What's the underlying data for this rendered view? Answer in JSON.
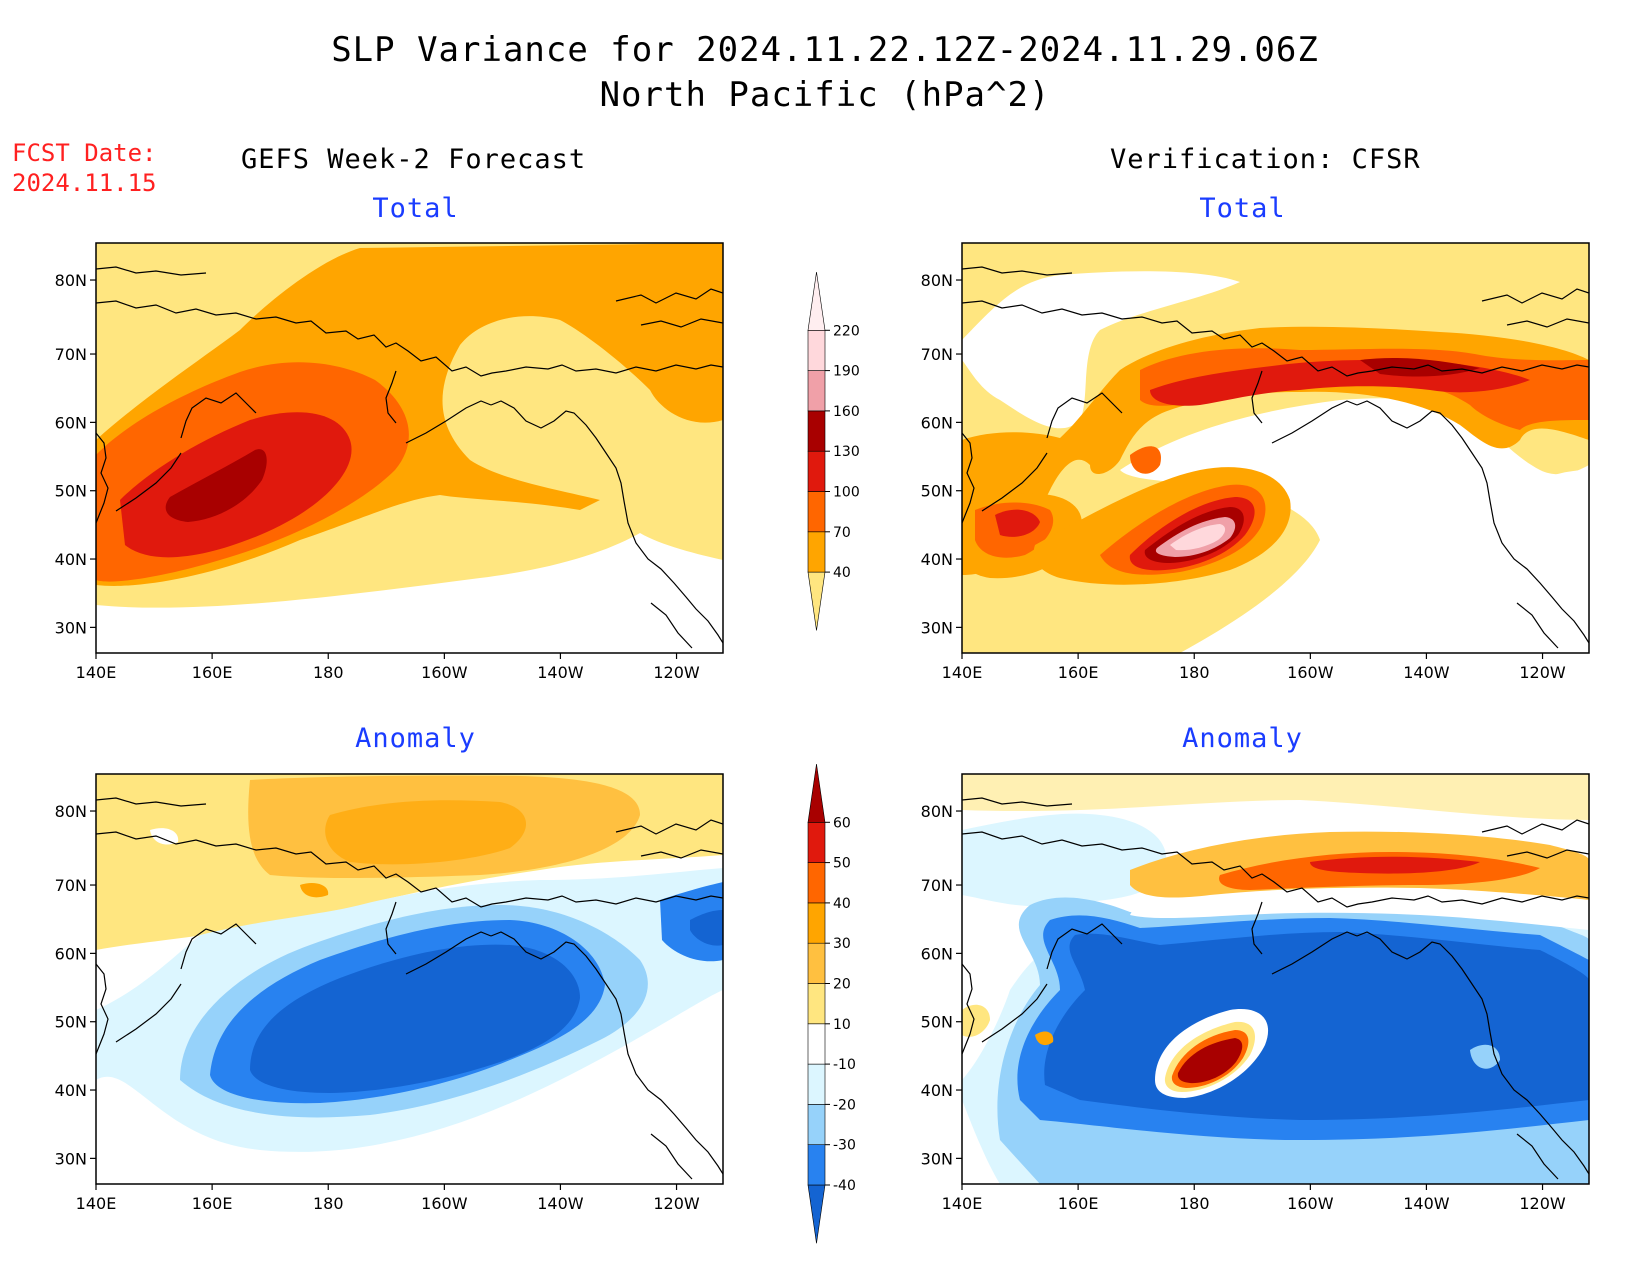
{
  "figure": {
    "title_line1": "SLP Variance for 2024.11.22.12Z-2024.11.29.06Z",
    "title_line2": "North Pacific (hPa^2)",
    "fcst_label": "FCST Date:",
    "fcst_date": "2024.11.15",
    "left_header": "GEFS Week-2 Forecast",
    "right_header": "Verification: CFSR"
  },
  "panels": [
    {
      "id": "fcst-total",
      "title": "Total"
    },
    {
      "id": "verif-total",
      "title": "Total"
    },
    {
      "id": "fcst-anomaly",
      "title": "Anomaly"
    },
    {
      "id": "verif-anomaly",
      "title": "Anomaly"
    }
  ],
  "axes": {
    "lon_ticks": [
      "140E",
      "160E",
      "180",
      "160W",
      "140W",
      "120W"
    ],
    "lat_ticks": [
      "30N",
      "40N",
      "50N",
      "60N",
      "70N",
      "80N"
    ]
  },
  "colorbars": {
    "total": {
      "levels": [
        "40",
        "70",
        "100",
        "130",
        "160",
        "190",
        "220"
      ],
      "colors": [
        "#ffe680",
        "#ffa500",
        "#ff6600",
        "#e0190d",
        "#a80000",
        "#f0a0a8",
        "#ffd8dc",
        "#ffeef0"
      ]
    },
    "anomaly": {
      "levels": [
        "-40",
        "-30",
        "-20",
        "-10",
        "10",
        "20",
        "30",
        "40",
        "50",
        "60"
      ],
      "colors": [
        "#1464d2",
        "#2882f0",
        "#96d2fa",
        "#dcf6ff",
        "#ffffff",
        "#ffe680",
        "#ffc040",
        "#ffa500",
        "#ff6600",
        "#e0190d",
        "#a80000"
      ]
    }
  },
  "colors": {
    "title_text": "#000000",
    "fcst_text": "#ff2020",
    "panel_title_text": "#1a3cff"
  }
}
